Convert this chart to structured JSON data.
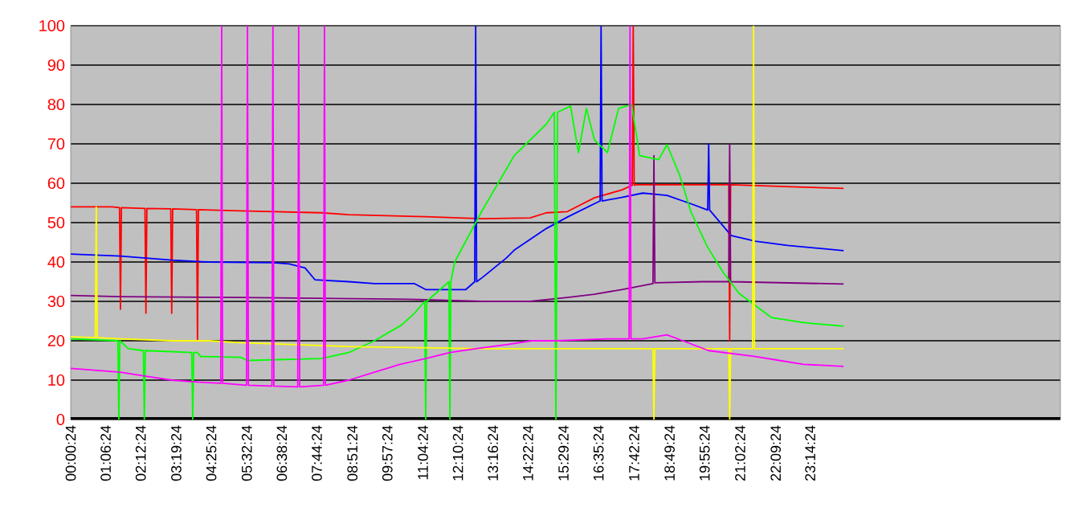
{
  "chart_data": {
    "type": "line",
    "xlim": [
      0.0067,
      31.1
    ],
    "xticks": [
      {
        "value": 0.0067,
        "label": "00:00:24"
      },
      {
        "value": 1.1067,
        "label": "01:06:24"
      },
      {
        "value": 2.2067,
        "label": "02:12:24"
      },
      {
        "value": 3.3233,
        "label": "03:19:24"
      },
      {
        "value": 4.4233,
        "label": "04:25:24"
      },
      {
        "value": 5.54,
        "label": "05:32:24"
      },
      {
        "value": 6.64,
        "label": "06:38:24"
      },
      {
        "value": 7.74,
        "label": "07:44:24"
      },
      {
        "value": 8.8567,
        "label": "08:51:24"
      },
      {
        "value": 9.9567,
        "label": "09:57:24"
      },
      {
        "value": 11.0733,
        "label": "11:04:24"
      },
      {
        "value": 12.1733,
        "label": "12:10:24"
      },
      {
        "value": 13.2733,
        "label": "13:16:24"
      },
      {
        "value": 14.3733,
        "label": "14:22:24"
      },
      {
        "value": 15.49,
        "label": "15:29:24"
      },
      {
        "value": 16.59,
        "label": "16:35:24"
      },
      {
        "value": 17.7067,
        "label": "17:42:24"
      },
      {
        "value": 18.8233,
        "label": "18:49:24"
      },
      {
        "value": 19.9233,
        "label": "19:55:24"
      },
      {
        "value": 21.04,
        "label": "21:02:24"
      },
      {
        "value": 22.1567,
        "label": "22:09:24"
      },
      {
        "value": 23.24,
        "label": "23:14:24"
      }
    ],
    "ylim": [
      0,
      100
    ],
    "yticks": [
      0,
      10,
      20,
      30,
      40,
      50,
      60,
      70,
      80,
      90,
      100
    ],
    "grid": "y",
    "legend": false,
    "marker": "none",
    "line_style": "solid",
    "series": [
      {
        "color": "#ff0000",
        "x": [
          0.01,
          1.31,
          1.54,
          1.57,
          1.6,
          2.34,
          2.37,
          2.4,
          3.15,
          3.18,
          3.21,
          3.96,
          3.99,
          4.02,
          5.35,
          7.88,
          8.74,
          11.16,
          12.93,
          14.44,
          14.95,
          15.61,
          16.46,
          17.32,
          17.65,
          17.68,
          17.71,
          17.83,
          20.68,
          20.71,
          20.74,
          23.03,
          24.29
        ],
        "values": [
          54,
          54,
          53.8,
          28,
          53.8,
          53.6,
          27,
          53.6,
          53.5,
          27,
          53.5,
          53.3,
          20,
          53.3,
          53,
          52.5,
          52,
          51.5,
          51,
          51.2,
          52.5,
          52.8,
          56.3,
          58.3,
          59.5,
          100,
          59.5,
          59.6,
          59.6,
          20,
          59.6,
          59,
          58.7
        ]
      },
      {
        "color": "#0000ff",
        "x": [
          0.01,
          1.57,
          2.37,
          3.18,
          4.34,
          6.36,
          6.87,
          7.37,
          7.68,
          8.74,
          9.55,
          10.81,
          11.16,
          12.42,
          12.7,
          12.73,
          12.76,
          12.93,
          13.69,
          13.94,
          14.95,
          15.61,
          16.46,
          16.64,
          16.67,
          16.7,
          17.32,
          17.98,
          18.74,
          19.49,
          20.02,
          20.05,
          20.08,
          20.76,
          21.52,
          22.53,
          24.29
        ],
        "values": [
          42,
          41.5,
          41,
          40.5,
          40,
          39.8,
          39.5,
          38.5,
          35.5,
          35,
          34.5,
          34.5,
          33,
          33,
          35,
          100,
          35,
          36,
          41,
          43,
          48.5,
          51.4,
          54.8,
          55.5,
          100,
          55.5,
          56.4,
          57.5,
          56.9,
          54.8,
          53.2,
          70,
          53.2,
          46.7,
          45.3,
          44.2,
          42.9
        ]
      },
      {
        "color": "#800080",
        "x": [
          0.01,
          1.57,
          5.35,
          10.91,
          12.93,
          14.44,
          15.61,
          16.46,
          17.32,
          18.3,
          18.33,
          18.36,
          19.85,
          20.68,
          20.71,
          20.74,
          24.29
        ],
        "values": [
          31.5,
          31.2,
          31,
          30.5,
          30,
          30,
          31,
          31.8,
          33,
          34.5,
          67,
          34.7,
          35,
          35,
          70,
          35,
          34.4
        ]
      },
      {
        "color": "#00ff00",
        "x": [
          0.01,
          1.49,
          1.52,
          1.55,
          1.82,
          2.29,
          2.32,
          2.35,
          2.37,
          3.81,
          3.84,
          3.87,
          3.99,
          4.09,
          5.35,
          5.56,
          7.88,
          8.74,
          9.55,
          10.4,
          10.81,
          11.13,
          11.16,
          11.19,
          11.89,
          11.92,
          11.95,
          12.07,
          12.93,
          13.94,
          14.95,
          15.2,
          15.25,
          15.3,
          15.71,
          15.96,
          16.21,
          16.46,
          16.87,
          17.22,
          17.63,
          17.88,
          18.48,
          18.74,
          19.14,
          19.49,
          20.0,
          20.51,
          21.01,
          22.02,
          23.03,
          24.29
        ],
        "values": [
          20.5,
          20,
          0,
          20,
          18,
          17.5,
          0,
          17.5,
          17.5,
          17,
          0,
          17,
          17,
          16,
          15.8,
          15,
          15.5,
          17,
          20,
          24,
          27,
          30,
          0,
          30,
          35,
          0,
          35,
          40,
          53,
          67,
          75,
          78,
          0,
          78,
          79.6,
          67.8,
          79,
          71,
          67.8,
          79,
          80,
          67,
          66,
          69.8,
          62,
          52.8,
          44,
          37.3,
          32,
          25.9,
          24.6,
          23.7
        ]
      },
      {
        "color": "#ffff00",
        "x": [
          0.01,
          0.78,
          0.81,
          0.84,
          1.57,
          3.18,
          4.34,
          5.35,
          8.89,
          12.93,
          18.3,
          18.33,
          18.36,
          20.68,
          20.71,
          20.74,
          21.43,
          21.46,
          21.49,
          24.29
        ],
        "values": [
          21,
          20.8,
          54,
          20.8,
          20.5,
          20,
          20,
          19.5,
          18.5,
          18,
          18,
          0,
          18,
          18,
          0,
          18,
          18,
          100,
          18,
          18
        ]
      },
      {
        "color": "#ff00ff",
        "x": [
          0.01,
          1.57,
          2.37,
          3.18,
          3.99,
          4.72,
          4.75,
          4.78,
          5.53,
          5.56,
          5.59,
          6.33,
          6.36,
          6.39,
          7.14,
          7.17,
          7.2,
          7.95,
          7.98,
          8.01,
          8.74,
          9.55,
          10.35,
          11.16,
          11.92,
          12.73,
          13.69,
          14.49,
          15.25,
          16.87,
          17.55,
          17.58,
          17.61,
          17.98,
          18.74,
          19.24,
          20.05,
          21.52,
          22.27,
          23.03,
          24.29
        ],
        "values": [
          13,
          12,
          11,
          10,
          9.5,
          9.2,
          100,
          9.2,
          8.7,
          100,
          8.7,
          8.5,
          100,
          8.5,
          8.3,
          100,
          8.3,
          8.7,
          100,
          8.7,
          10,
          12,
          14,
          15.5,
          17,
          18,
          19,
          20,
          20,
          20.5,
          20.5,
          100,
          20.5,
          20.5,
          21.5,
          20,
          17.5,
          16,
          15,
          14,
          13.5
        ]
      }
    ]
  }
}
